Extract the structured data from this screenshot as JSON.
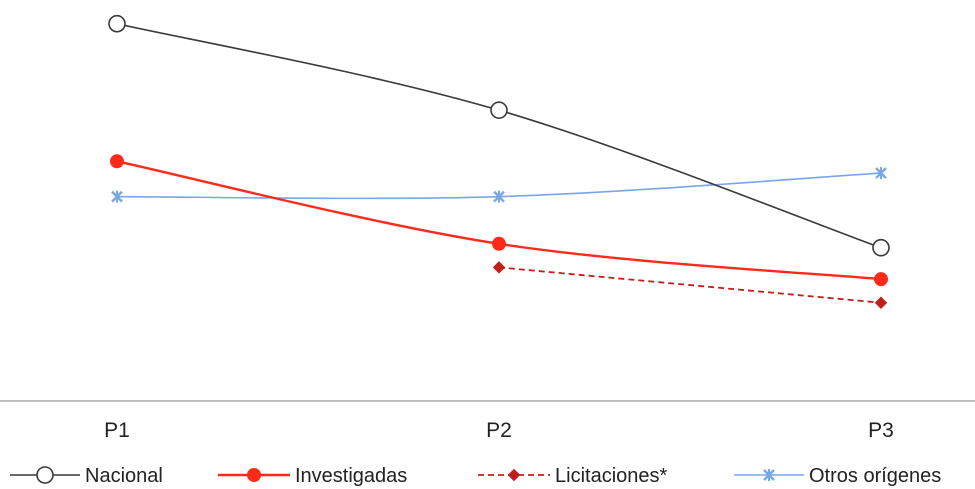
{
  "chart_data": {
    "type": "line",
    "categories": [
      "P1",
      "P2",
      "P3"
    ],
    "ylim": [
      0,
      100
    ],
    "grid": false,
    "legend_position": "bottom",
    "series": [
      {
        "name": "Nacional",
        "values": [
          96,
          74,
          39
        ],
        "color": "#3a3a3a",
        "marker": "open-circle",
        "dash": "solid"
      },
      {
        "name": "Investigadas",
        "values": [
          61,
          40,
          31
        ],
        "color": "#ff2a1a",
        "marker": "filled-circle",
        "dash": "solid"
      },
      {
        "name": "Licitaciones*",
        "values": [
          null,
          34,
          25
        ],
        "color": "#c0201a",
        "marker": "diamond",
        "dash": "dashed"
      },
      {
        "name": "Otros orígenes",
        "values": [
          52,
          52,
          58
        ],
        "color": "#7aa6e8",
        "marker": "star",
        "dash": "solid"
      }
    ]
  }
}
